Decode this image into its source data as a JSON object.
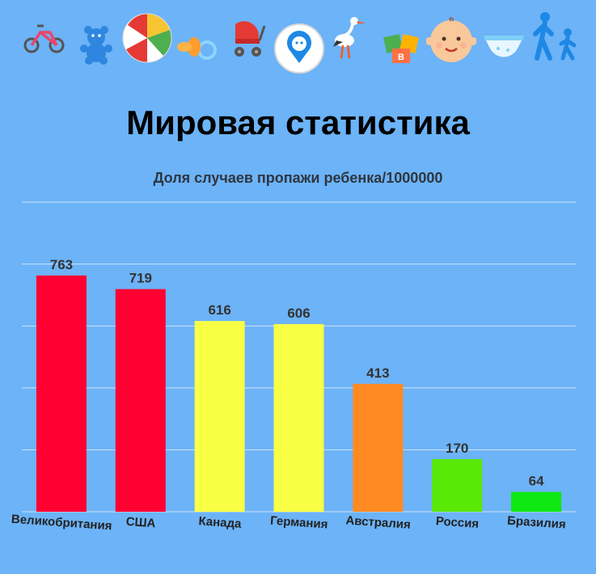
{
  "title": "Мировая статистика",
  "icons": [
    "tricycle-icon",
    "teddy-bear-icon",
    "beach-ball-icon",
    "pacifier-icon",
    "stroller-icon",
    "child-location-icon",
    "stork-icon",
    "toy-blocks-icon",
    "baby-face-icon",
    "diaper-icon",
    "walking-parent-child-icon"
  ],
  "colors": {
    "background": "#6cb3f7",
    "red": "#ff0033",
    "yellow": "#f9ff45",
    "orange": "#ff8a22",
    "green": "#5ae806",
    "bright_green": "#0fe812",
    "gridline": "#cfe3fb"
  },
  "chart_data": {
    "type": "bar",
    "title": "Доля случаев пропажи ребенка/1000000",
    "categories": [
      "Великобритания",
      "США",
      "Канада",
      "Германия",
      "Австралия",
      "Россия",
      "Бразилия"
    ],
    "values": [
      763,
      719,
      616,
      606,
      413,
      170,
      64
    ],
    "bar_colors": [
      "#ff0033",
      "#ff0033",
      "#f9ff45",
      "#f9ff45",
      "#ff8a22",
      "#5ae806",
      "#0fe812"
    ],
    "ylim": [
      0,
      1000
    ],
    "grid": true,
    "data_labels": true,
    "xlabel": "",
    "ylabel": ""
  }
}
